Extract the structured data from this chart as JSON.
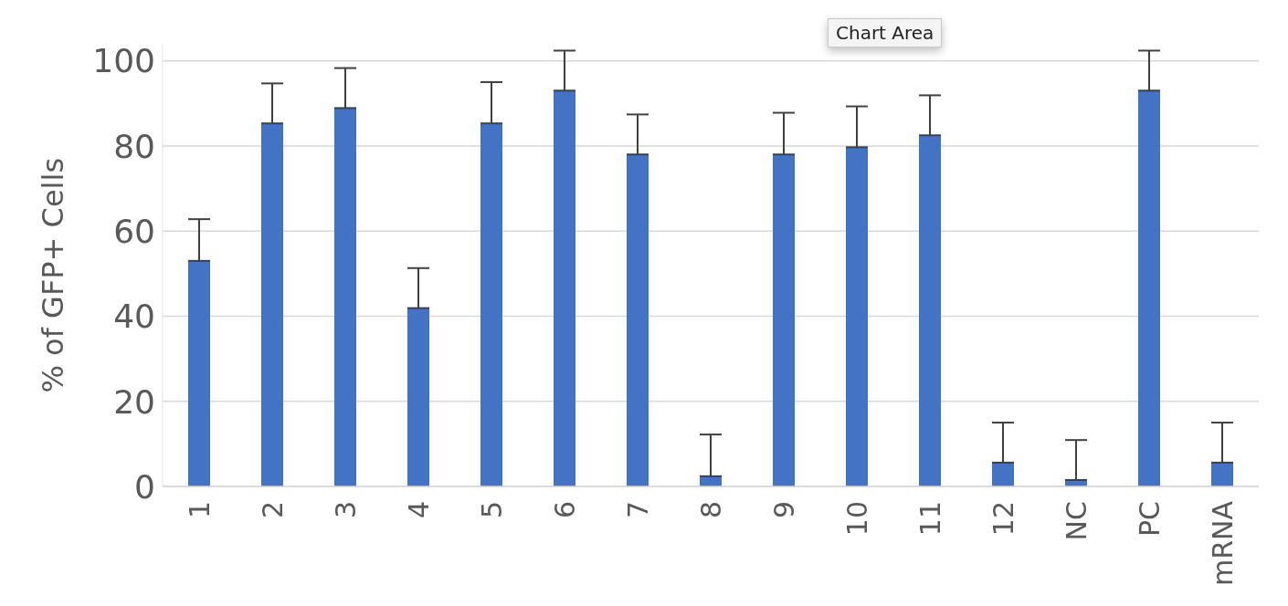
{
  "chart_data": {
    "type": "bar",
    "categories": [
      "1",
      "2",
      "3",
      "4",
      "5",
      "6",
      "7",
      "8",
      "9",
      "10",
      "11",
      "12",
      "NC",
      "PC",
      "mRNA"
    ],
    "values": [
      53,
      85.3,
      88.9,
      41.9,
      85.3,
      93,
      78,
      2.4,
      78,
      79.7,
      82.5,
      5.6,
      1.5,
      93,
      5.6
    ],
    "errors": [
      [
        53,
        62.8
      ],
      [
        85.3,
        94.7
      ],
      [
        88.9,
        98.3
      ],
      [
        41.9,
        51.3
      ],
      [
        85.3,
        95
      ],
      [
        93,
        102.4
      ],
      [
        78,
        87.4
      ],
      [
        2.4,
        12.2
      ],
      [
        78,
        87.8
      ],
      [
        79.7,
        89.3
      ],
      [
        82.5,
        91.9
      ],
      [
        5.6,
        15
      ],
      [
        1.5,
        10.9
      ],
      [
        93,
        102.4
      ],
      [
        5.6,
        15
      ]
    ],
    "color": "#4472c4",
    "ylabel": "% of GFP+ Cells",
    "ylim": [
      0,
      104
    ],
    "yticks": [
      0,
      20,
      40,
      60,
      80,
      100
    ],
    "grid": "y",
    "annotations": [
      "Chart Area"
    ]
  }
}
